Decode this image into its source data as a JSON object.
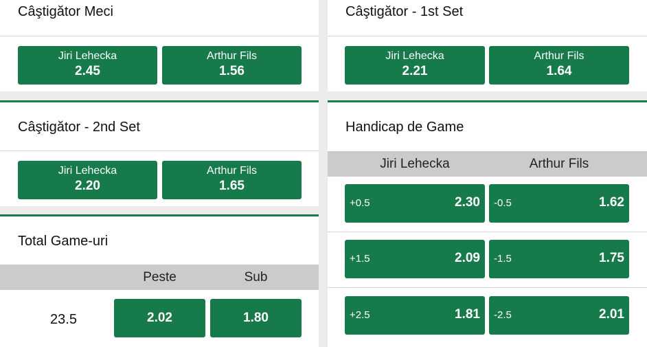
{
  "markets": {
    "match_winner": {
      "title": "Câştigător Meci",
      "odds": [
        {
          "name": "Jiri Lehecka",
          "price": "2.45"
        },
        {
          "name": "Arthur Fils",
          "price": "1.56"
        }
      ]
    },
    "set1_winner": {
      "title": "Câştigător - 1st Set",
      "odds": [
        {
          "name": "Jiri Lehecka",
          "price": "2.21"
        },
        {
          "name": "Arthur Fils",
          "price": "1.64"
        }
      ]
    },
    "set2_winner": {
      "title": "Câştigător - 2nd Set",
      "odds": [
        {
          "name": "Jiri Lehecka",
          "price": "2.20"
        },
        {
          "name": "Arthur Fils",
          "price": "1.65"
        }
      ]
    },
    "total_games": {
      "title": "Total Game-uri",
      "headers": [
        "Peste",
        "Sub"
      ],
      "line": "23.5",
      "odds": [
        "2.02",
        "1.80"
      ]
    },
    "game_handicap": {
      "title": "Handicap de Game",
      "headers": [
        "Jiri Lehecka",
        "Arthur Fils"
      ],
      "rows": [
        [
          {
            "line": "+0.5",
            "price": "2.30"
          },
          {
            "line": "-0.5",
            "price": "1.62"
          }
        ],
        [
          {
            "line": "+1.5",
            "price": "2.09"
          },
          {
            "line": "-1.5",
            "price": "1.75"
          }
        ],
        [
          {
            "line": "+2.5",
            "price": "1.81"
          },
          {
            "line": "-2.5",
            "price": "2.01"
          }
        ]
      ]
    }
  },
  "colors": {
    "accent": "#177a4a",
    "header_bg": "#cbcbcb",
    "page_bg": "#ececec"
  }
}
